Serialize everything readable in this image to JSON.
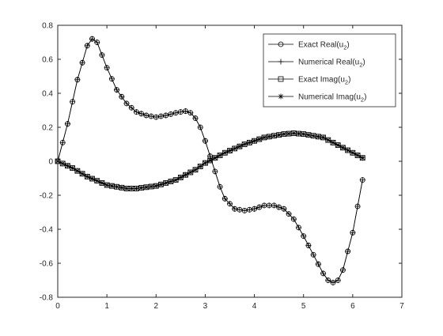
{
  "chart_data": {
    "type": "line",
    "xlim": [
      0,
      7
    ],
    "ylim": [
      -0.8,
      0.8
    ],
    "x_ticks": [
      0,
      1,
      2,
      3,
      4,
      5,
      6,
      7
    ],
    "y_ticks": [
      -0.8,
      -0.6,
      -0.4,
      -0.2,
      0,
      0.2,
      0.4,
      0.6,
      0.8
    ],
    "x_tick_labels": [
      "0",
      "1",
      "2",
      "3",
      "4",
      "5",
      "6",
      "7"
    ],
    "y_tick_labels": [
      "-0.8",
      "-0.6",
      "-0.4",
      "-0.2",
      "0",
      "0.2",
      "0.4",
      "0.6",
      "0.8"
    ],
    "grid": false,
    "legend_position": "top-right",
    "legend": [
      {
        "label_main": "Exact Real(u",
        "label_sub": "2",
        "label_end": ")",
        "marker": "circle"
      },
      {
        "label_main": "Numerical Real(u",
        "label_sub": "2",
        "label_end": ")",
        "marker": "plus"
      },
      {
        "label_main": "Exact Imag(u",
        "label_sub": "2",
        "label_end": ")",
        "marker": "square"
      },
      {
        "label_main": "Numerical Imag(u",
        "label_sub": "2",
        "label_end": ")",
        "marker": "asterisk"
      }
    ],
    "x_sampling": {
      "start": 0,
      "step": 0.1,
      "count": 63
    },
    "series": [
      {
        "name": "Exact Real(u2)",
        "marker": "circle",
        "anchors": {
          "x": [
            0,
            0.2,
            0.4,
            0.6,
            0.7,
            0.8,
            1.0,
            1.2,
            1.4,
            1.6,
            1.8,
            2.0,
            2.2,
            2.4,
            2.6,
            2.75,
            2.9,
            3.0,
            3.1,
            3.2,
            3.3,
            3.4,
            3.6,
            3.8,
            4.0,
            4.2,
            4.4,
            4.6,
            4.8,
            5.0,
            5.2,
            5.4,
            5.55,
            5.7,
            5.8,
            6.0,
            6.2
          ],
          "y": [
            0.0,
            0.22,
            0.48,
            0.68,
            0.72,
            0.7,
            0.55,
            0.42,
            0.34,
            0.29,
            0.27,
            0.26,
            0.27,
            0.285,
            0.295,
            0.28,
            0.2,
            0.12,
            0.03,
            -0.06,
            -0.15,
            -0.22,
            -0.28,
            -0.29,
            -0.28,
            -0.26,
            -0.26,
            -0.28,
            -0.34,
            -0.44,
            -0.55,
            -0.66,
            -0.72,
            -0.7,
            -0.64,
            -0.42,
            -0.11
          ]
        }
      },
      {
        "name": "Numerical Real(u2)",
        "marker": "plus",
        "same_as": "Exact Real(u2)"
      },
      {
        "name": "Exact Imag(u2)",
        "marker": "square",
        "anchors": {
          "x": [
            0,
            0.3,
            0.6,
            1.0,
            1.4,
            1.6,
            2.0,
            2.4,
            2.8,
            3.0,
            3.4,
            3.8,
            4.2,
            4.6,
            4.8,
            5.0,
            5.4,
            5.8,
            6.0,
            6.2
          ],
          "y": [
            0.0,
            -0.04,
            -0.09,
            -0.14,
            -0.16,
            -0.16,
            -0.145,
            -0.11,
            -0.05,
            -0.01,
            0.05,
            0.1,
            0.14,
            0.16,
            0.165,
            0.16,
            0.14,
            0.08,
            0.05,
            0.02
          ]
        }
      },
      {
        "name": "Numerical Imag(u2)",
        "marker": "asterisk",
        "same_as": "Exact Imag(u2)"
      }
    ]
  }
}
